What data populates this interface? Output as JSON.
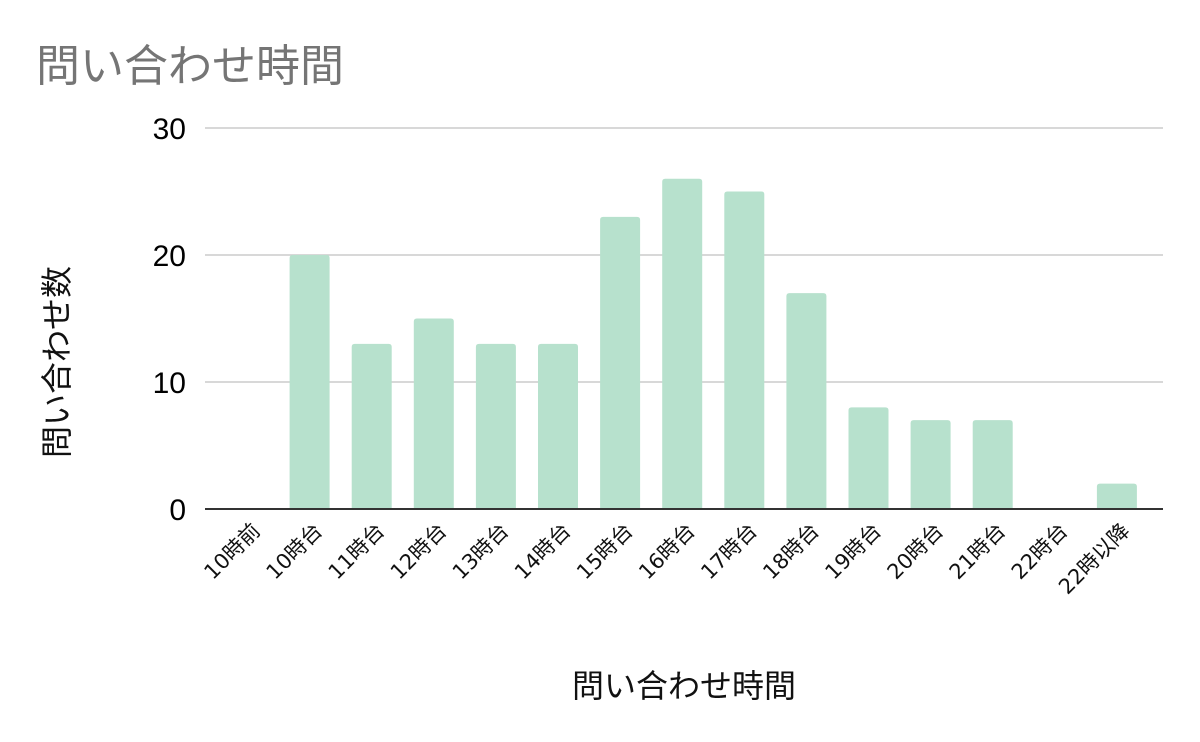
{
  "chart_data": {
    "type": "bar",
    "title": "問い合わせ時間",
    "xlabel": "問い合わせ時間",
    "ylabel": "問い合わせ数",
    "categories": [
      "10時前",
      "10時台",
      "11時台",
      "12時台",
      "13時台",
      "14時台",
      "15時台",
      "16時台",
      "17時台",
      "18時台",
      "19時台",
      "20時台",
      "21時台",
      "22時台",
      "22時以降"
    ],
    "values": [
      0,
      20,
      13,
      15,
      13,
      13,
      23,
      26,
      25,
      17,
      8,
      7,
      7,
      0,
      2
    ],
    "ylim": [
      0,
      30
    ],
    "yticks": [
      0,
      10,
      20,
      30
    ],
    "grid": true,
    "legend": "none",
    "colors": {
      "bar": "#b7e1cd",
      "grid": "#cccccc",
      "axis": "#333333",
      "title": "#757575"
    }
  }
}
